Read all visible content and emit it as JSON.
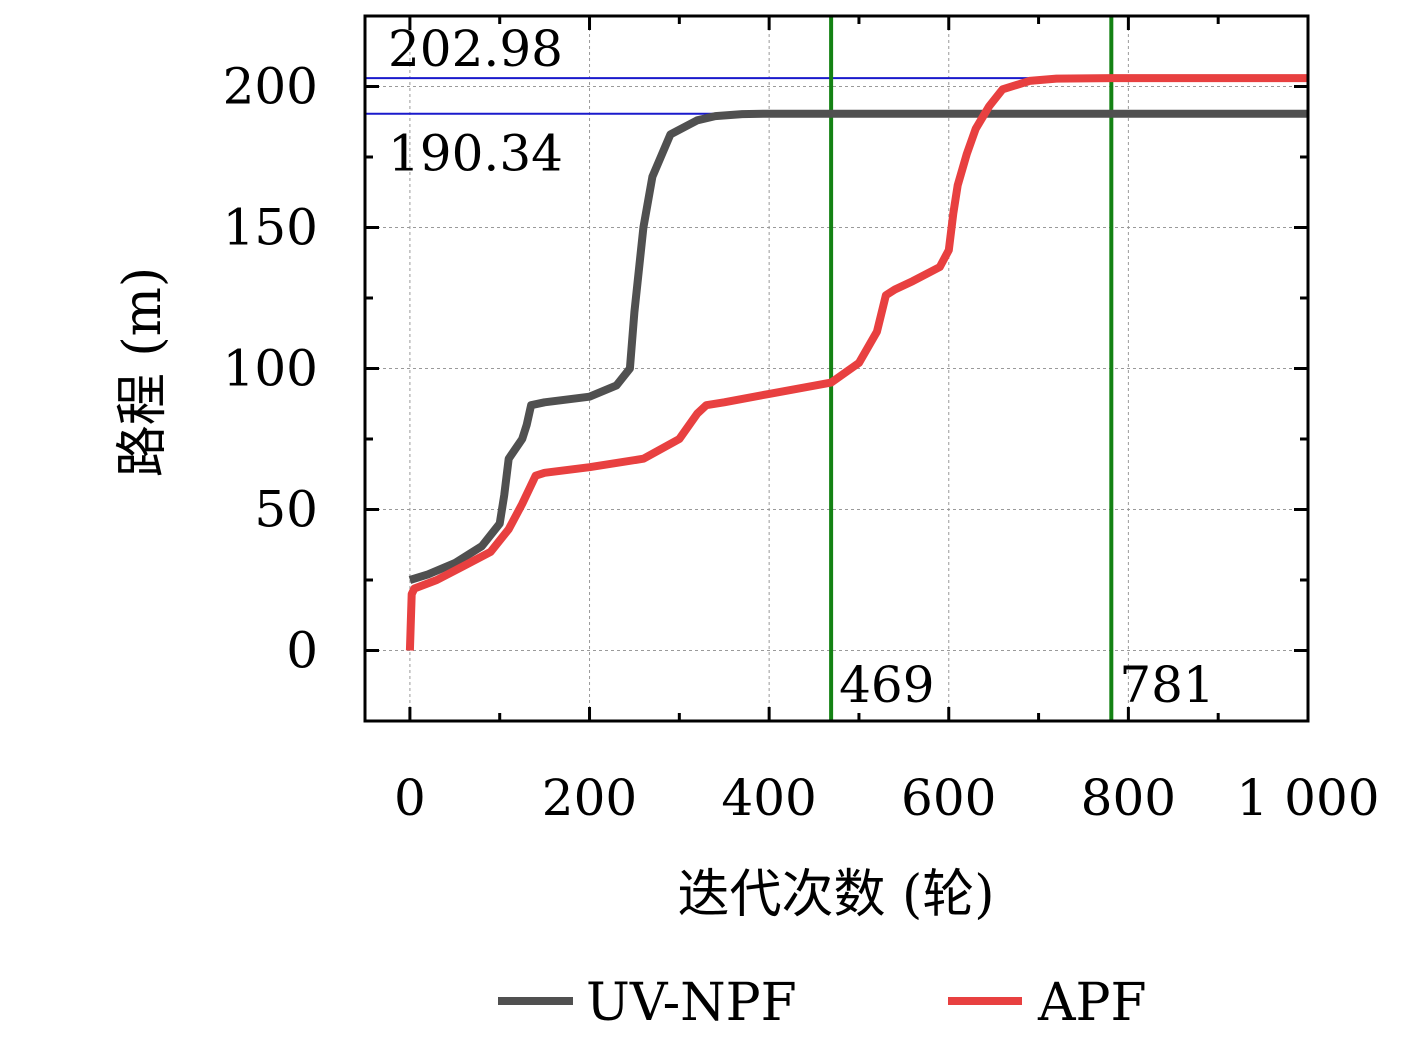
{
  "chart_data": {
    "type": "line",
    "xlabel": "迭代次数 (轮)",
    "ylabel": "路程 (m)",
    "xlim": [
      -50,
      1000
    ],
    "ylim": [
      -25,
      225
    ],
    "x_ticks": [
      0,
      200,
      400,
      600,
      800,
      1000
    ],
    "x_tick_labels": [
      "0",
      "200",
      "400",
      "600",
      "800",
      "1 000"
    ],
    "y_ticks": [
      0,
      50,
      100,
      150,
      200
    ],
    "y_tick_labels": [
      "0",
      "50",
      "100",
      "150",
      "200"
    ],
    "grid": true,
    "legend": "bottom",
    "series": [
      {
        "name": "UV-NPF",
        "color": "#505050",
        "x": [
          0,
          20,
          50,
          80,
          100,
          105,
          110,
          125,
          130,
          135,
          150,
          200,
          230,
          245,
          250,
          260,
          270,
          290,
          320,
          340,
          370,
          400,
          469,
          600,
          800,
          1000
        ],
        "y": [
          25,
          27,
          31,
          37,
          45,
          55,
          68,
          75,
          80,
          87,
          88,
          90,
          94,
          100,
          120,
          150,
          168,
          183,
          188,
          189.5,
          190.2,
          190.34,
          190.34,
          190.34,
          190.34,
          190.34
        ]
      },
      {
        "name": "APF",
        "color": "#e84040",
        "x": [
          0,
          2,
          5,
          30,
          60,
          90,
          110,
          125,
          140,
          150,
          200,
          260,
          300,
          320,
          330,
          350,
          400,
          469,
          500,
          520,
          530,
          540,
          560,
          590,
          600,
          605,
          610,
          620,
          630,
          645,
          660,
          690,
          720,
          781,
          900,
          1000
        ],
        "y": [
          0,
          20,
          22,
          25,
          30,
          35,
          43,
          52,
          62,
          63,
          65,
          68,
          75,
          84,
          87,
          88,
          91,
          95,
          102,
          113,
          126,
          128,
          131,
          136,
          142,
          155,
          165,
          176,
          185,
          193,
          199,
          202,
          202.8,
          202.98,
          202.98,
          202.98
        ]
      }
    ],
    "reference_lines": {
      "horizontal": [
        {
          "value": 202.98,
          "label": "202.98",
          "color": "#1a1acc"
        },
        {
          "value": 190.34,
          "label": "190.34",
          "color": "#1a1acc"
        }
      ],
      "vertical": [
        {
          "value": 469,
          "label": "469",
          "color": "#148214"
        },
        {
          "value": 781,
          "label": "781",
          "color": "#148214"
        }
      ]
    }
  }
}
